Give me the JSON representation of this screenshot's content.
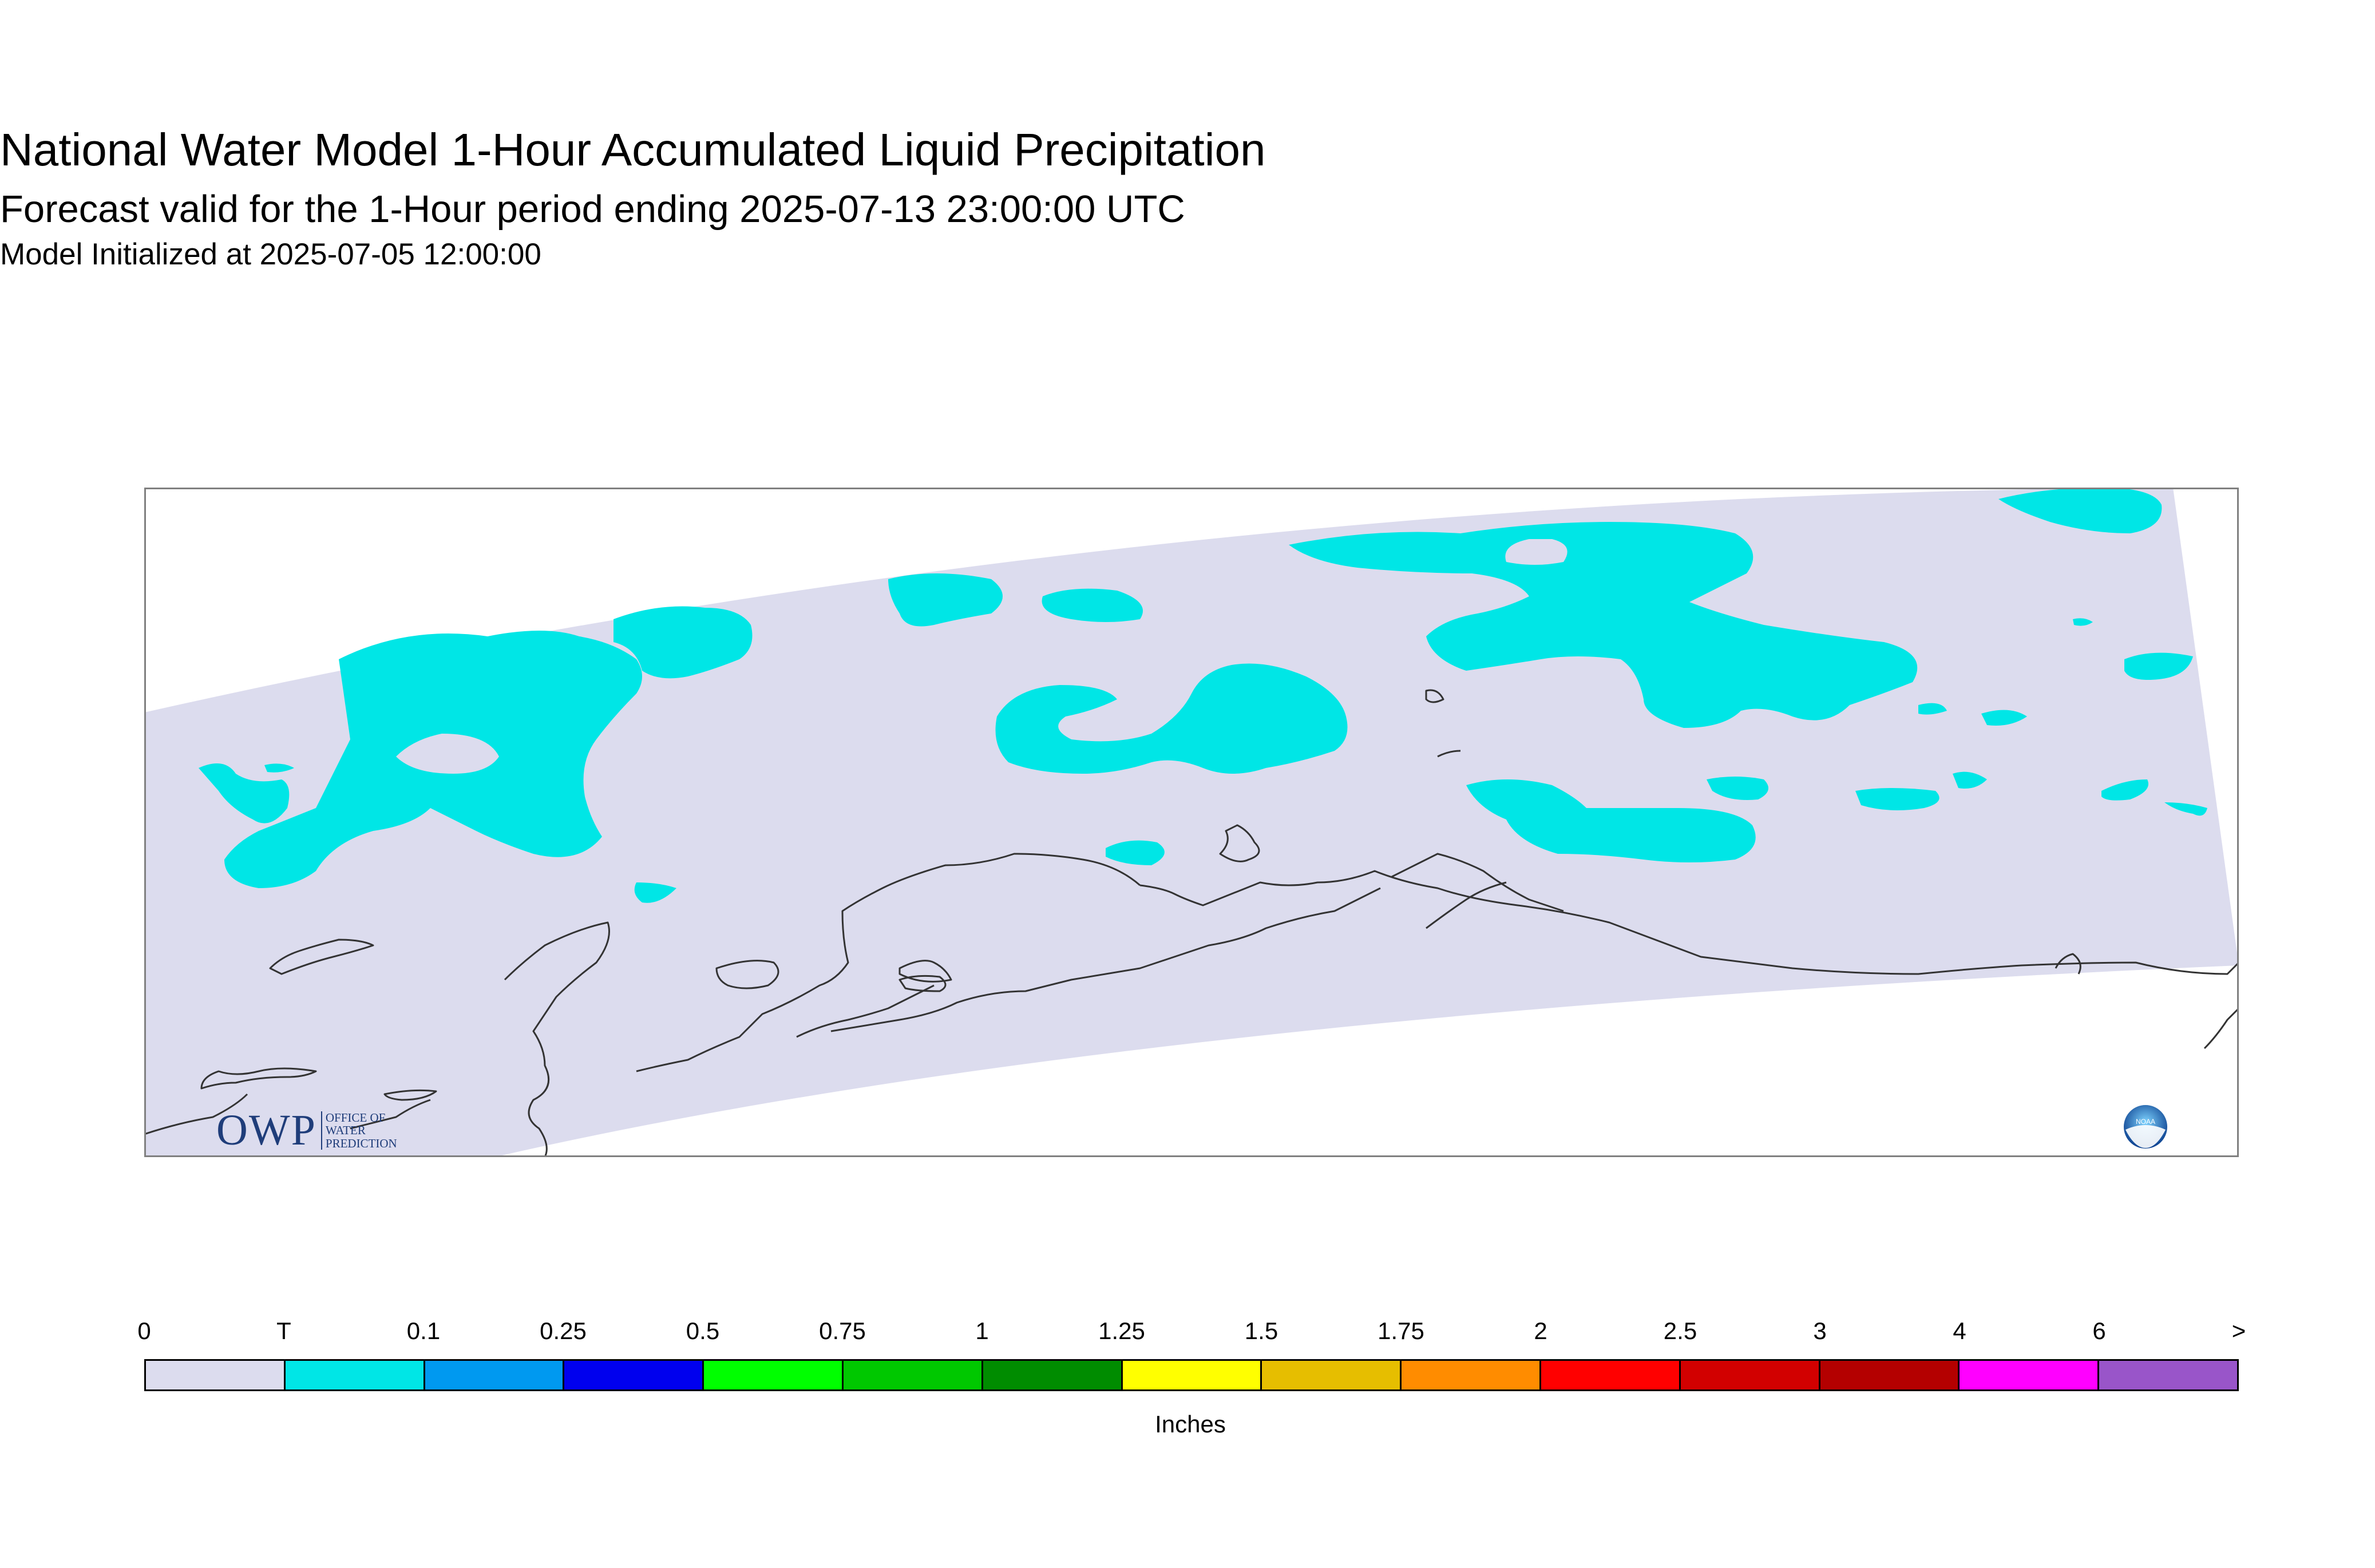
{
  "title": "National Water Model 1-Hour Accumulated Liquid Precipitation",
  "subtitle": "Forecast valid for the 1-Hour period ending 2025-07-13 23:00:00 UTC",
  "init_line": "Model Initialized at 2025-07-05 12:00:00",
  "colors": {
    "domain_fill": "#dcdcee",
    "precip_trace": "#00e6e6",
    "coastline": "#333333",
    "frame": "#808080"
  },
  "legend": {
    "units": "Inches",
    "ticks": [
      "0",
      "T",
      "0.1",
      "0.25",
      "0.5",
      "0.75",
      "1",
      "1.25",
      "1.5",
      "1.75",
      "2",
      "2.5",
      "3",
      "4",
      "6",
      ">"
    ],
    "colors": [
      "#dcdcee",
      "#00e6e6",
      "#0099f0",
      "#0000ee",
      "#00ff00",
      "#00c800",
      "#008c00",
      "#ffff00",
      "#e6be00",
      "#ff8c00",
      "#ff0000",
      "#d20000",
      "#b40000",
      "#ff00ff",
      "#9955c9"
    ]
  },
  "logos": {
    "owp_main": "OWP",
    "owp_line1": "OFFICE OF",
    "owp_line2": "WATER",
    "owp_line3": "PREDICTION",
    "noaa": "NOAA"
  }
}
